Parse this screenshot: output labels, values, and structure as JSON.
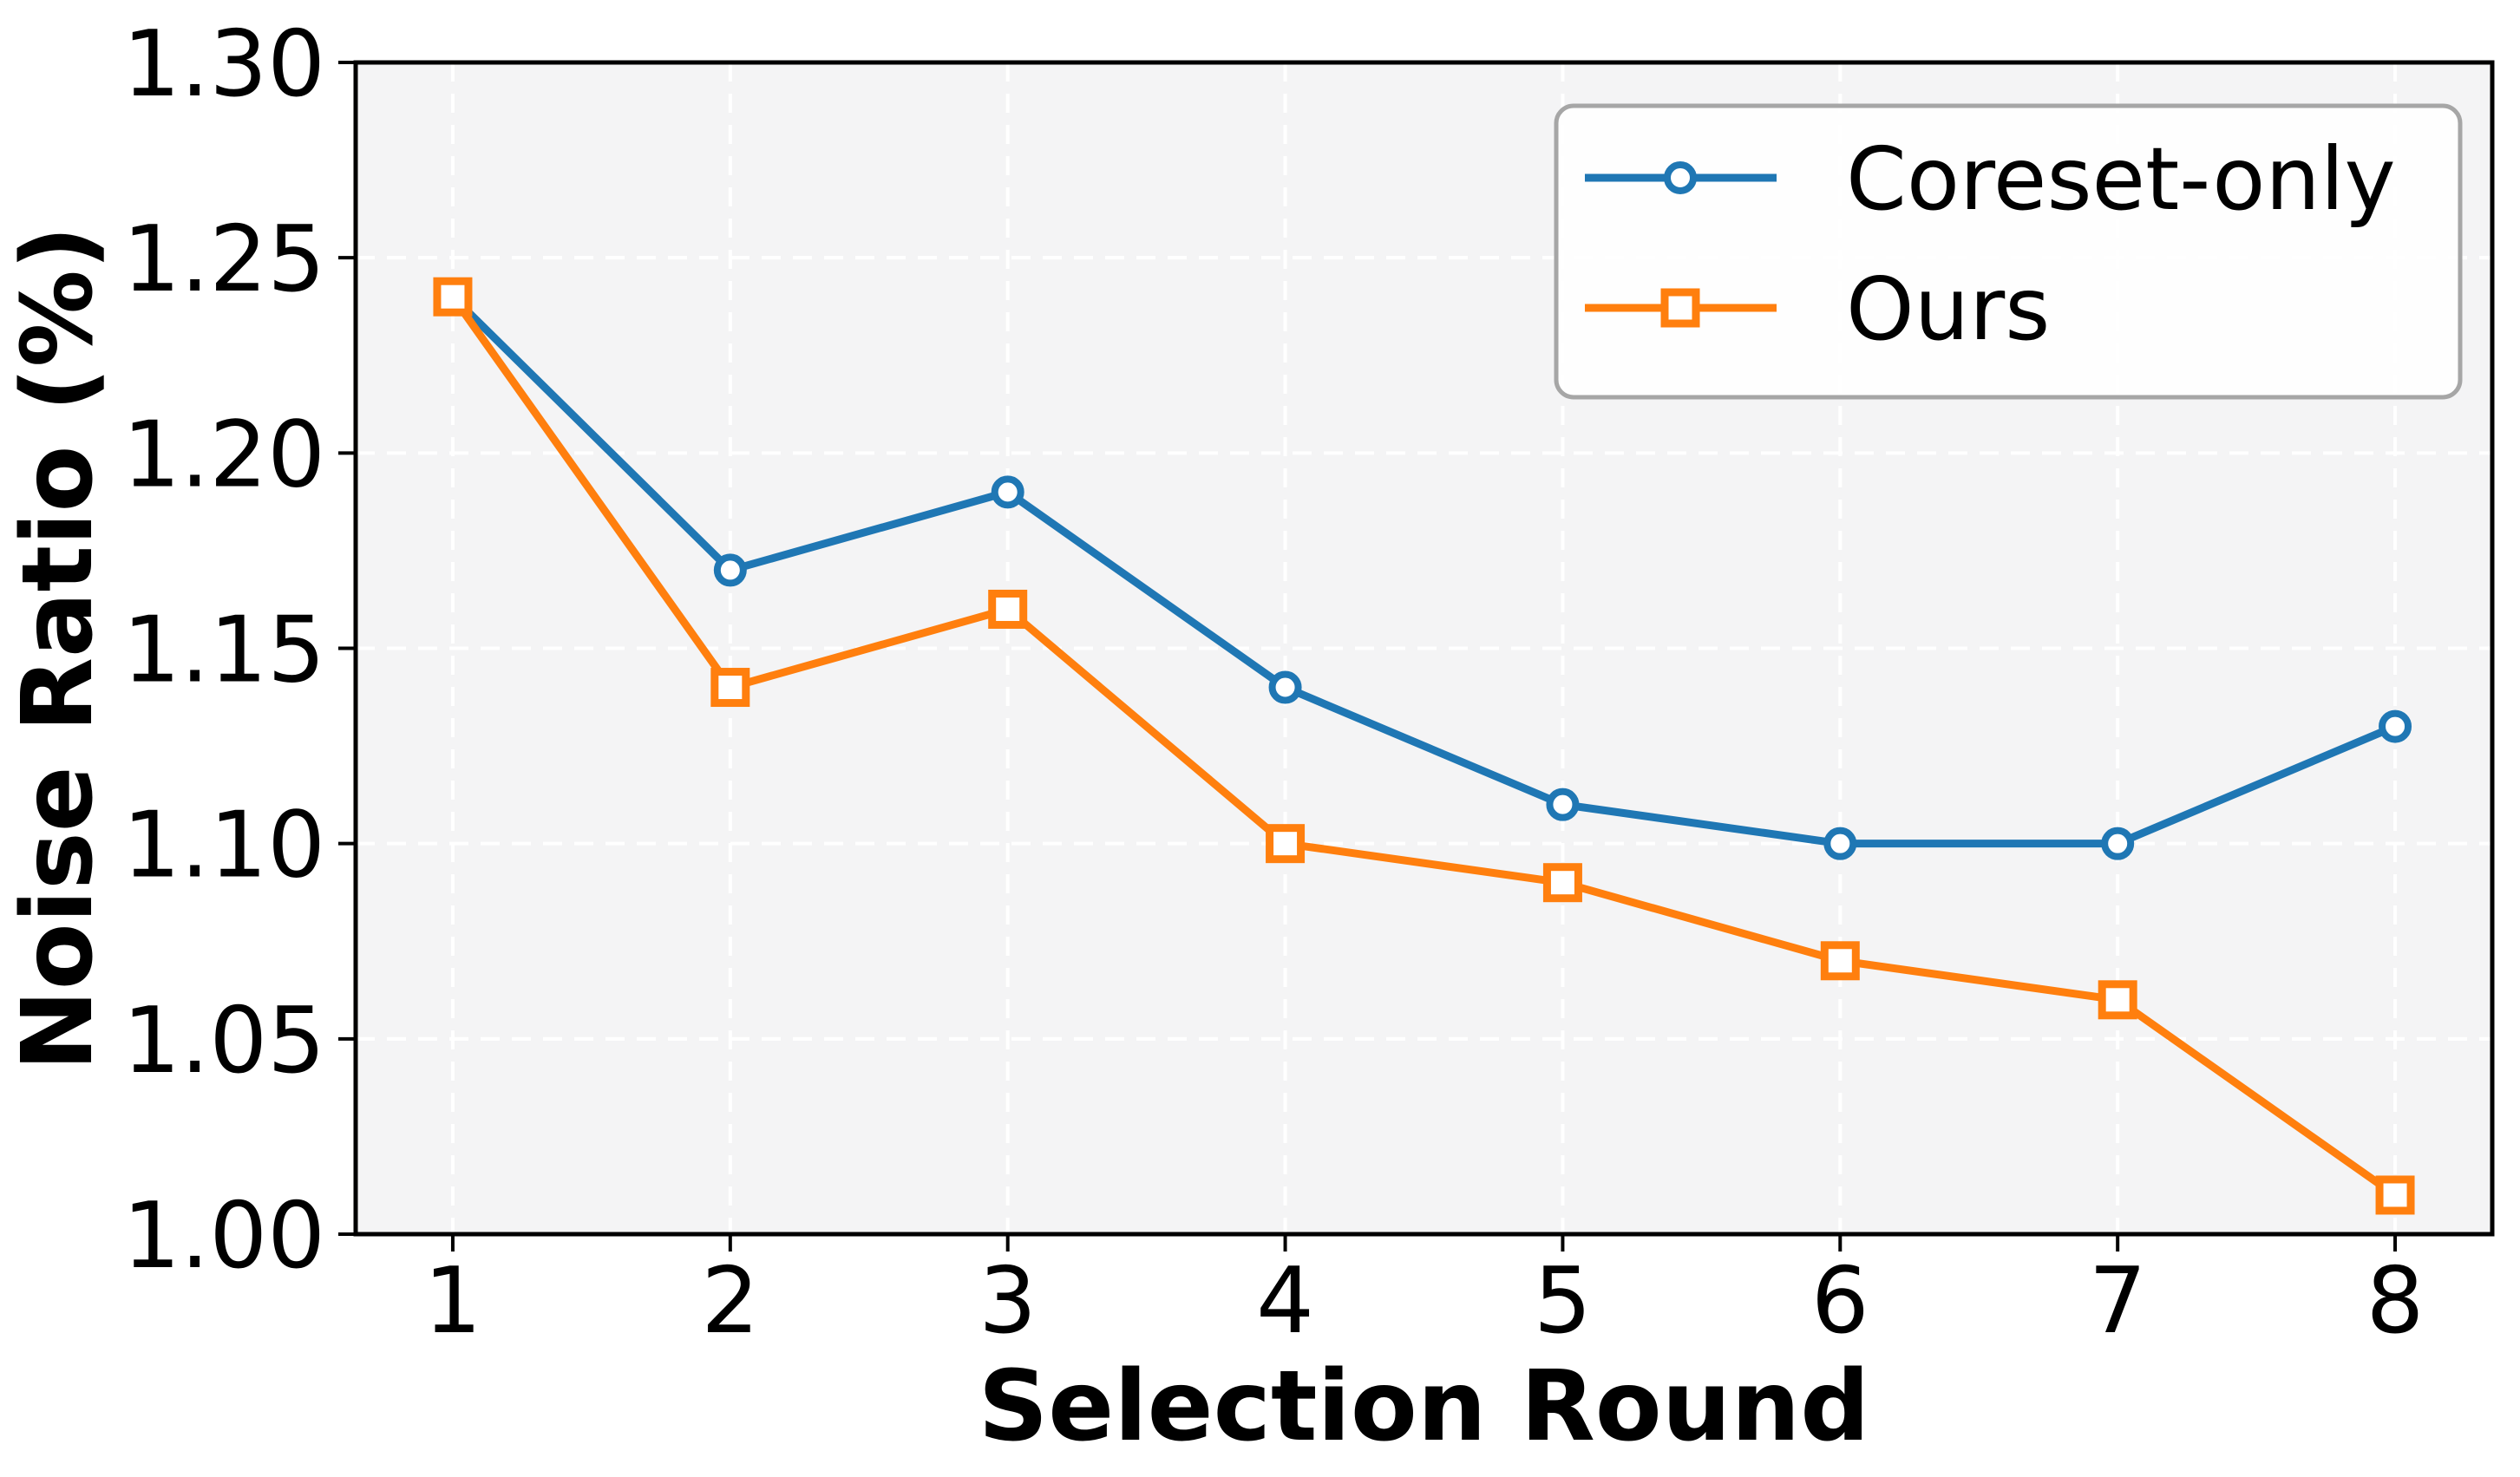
{
  "chart_data": {
    "type": "line",
    "title": "",
    "xlabel": "Selection Round",
    "ylabel": "Noise Ratio (%)",
    "x": [
      1,
      2,
      3,
      4,
      5,
      6,
      7,
      8
    ],
    "xtick_labels": [
      "1",
      "2",
      "3",
      "4",
      "5",
      "6",
      "7",
      "8"
    ],
    "ytick_values": [
      1.0,
      1.05,
      1.1,
      1.15,
      1.2,
      1.25,
      1.3
    ],
    "ytick_labels": [
      "1.00",
      "1.05",
      "1.10",
      "1.15",
      "1.20",
      "1.25",
      "1.30"
    ],
    "xlim": [
      0.65,
      8.35
    ],
    "ylim": [
      1.0,
      1.3
    ],
    "grid": {
      "show": true,
      "color": "#ffffff",
      "style": "dashed",
      "axes": "both"
    },
    "plot_background": "#f4f4f5",
    "figure_background": "#ffffff",
    "spine_color": "#000000",
    "legend": {
      "position": "upper-right",
      "border_color": "#a6a6a6",
      "face_color": "#ffffff"
    },
    "series": [
      {
        "name": "Coreset-only",
        "color": "#1f77b4",
        "marker": "circle",
        "marker_fill": "#ffffff",
        "values": [
          1.24,
          1.17,
          1.19,
          1.14,
          1.11,
          1.1,
          1.1,
          1.13
        ]
      },
      {
        "name": "Ours",
        "color": "#ff7f0e",
        "marker": "square",
        "marker_fill": "#ffffff",
        "values": [
          1.24,
          1.14,
          1.16,
          1.1,
          1.09,
          1.07,
          1.06,
          1.01
        ]
      }
    ]
  }
}
